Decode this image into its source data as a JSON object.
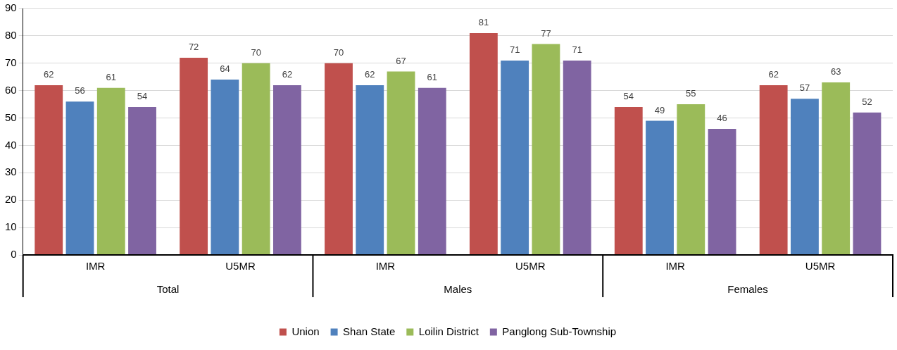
{
  "chart_data": {
    "type": "bar",
    "categories": [
      "IMR",
      "U5MR",
      "IMR",
      "U5MR",
      "IMR",
      "U5MR"
    ],
    "annotations": [
      "Total",
      "Males",
      "Females"
    ],
    "series": [
      {
        "name": "Union",
        "color": "#c0504d",
        "values": [
          62,
          72,
          70,
          81,
          54,
          62
        ]
      },
      {
        "name": "Shan State",
        "color": "#4f81bd",
        "values": [
          56,
          64,
          62,
          71,
          49,
          57
        ]
      },
      {
        "name": "Loilin District",
        "color": "#9bbb59",
        "values": [
          61,
          70,
          67,
          77,
          55,
          63
        ]
      },
      {
        "name": "Panglong Sub-Township",
        "color": "#8064a2",
        "values": [
          54,
          62,
          61,
          71,
          46,
          52
        ]
      }
    ],
    "ylim": [
      0,
      90
    ],
    "yticks": [
      0,
      10,
      20,
      30,
      40,
      50,
      60,
      70,
      80,
      90
    ],
    "grid": "y",
    "legend": "bottom",
    "data_labels": true
  }
}
